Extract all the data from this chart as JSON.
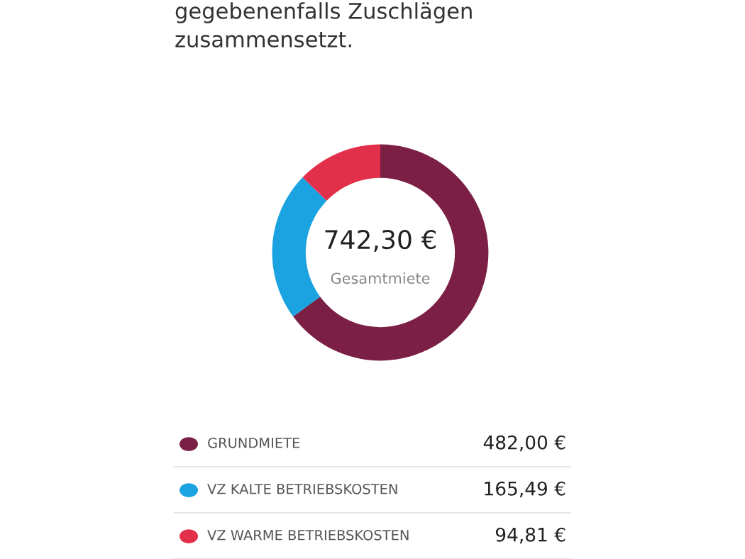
{
  "chart_data": {
    "type": "donut",
    "annotations": [
      "gegebenenfalls Zuschlägen",
      "zusammensetzt.",
      "742,30 €",
      "Gesamtmiete"
    ],
    "categories": [
      "GRUNDMIETE",
      "VZ KALTE BETRIEBSKOSTEN",
      "VZ WARME BETRIEBSKOSTEN"
    ],
    "values": [
      482.0,
      165.49,
      94.81
    ],
    "value_labels": [
      "482,00 €",
      "165,49 €",
      "94,81 €"
    ],
    "colors": [
      "#7b1f45",
      "#1aa3e0",
      "#e3304a"
    ],
    "legend": "bottom"
  }
}
